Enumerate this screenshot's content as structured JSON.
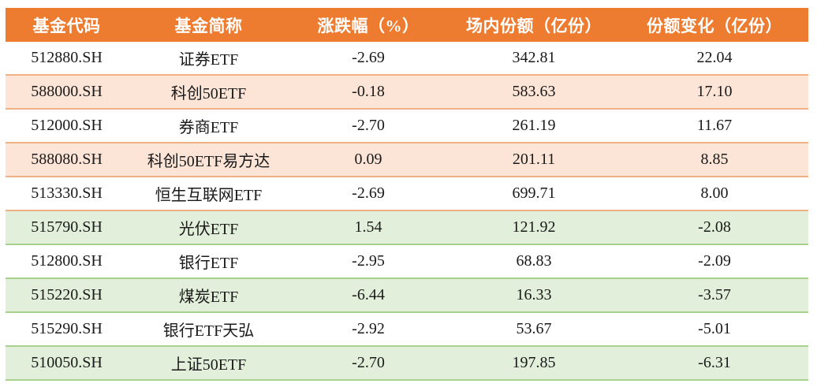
{
  "chart_data": {
    "type": "table",
    "columns": [
      "基金代码",
      "基金简称",
      "涨跌幅（%）",
      "场内份额（亿份）",
      "份额变化（亿份）"
    ],
    "rows": [
      [
        "512880.SH",
        "证券ETF",
        "-2.69",
        "342.81",
        "22.04"
      ],
      [
        "588000.SH",
        "科创50ETF",
        "-0.18",
        "583.63",
        "17.10"
      ],
      [
        "512000.SH",
        "券商ETF",
        "-2.70",
        "261.19",
        "11.67"
      ],
      [
        "588080.SH",
        "科创50ETF易方达",
        "0.09",
        "201.11",
        "8.85"
      ],
      [
        "513330.SH",
        "恒生互联网ETF",
        "-2.69",
        "699.71",
        "8.00"
      ],
      [
        "515790.SH",
        "光伏ETF",
        "1.54",
        "121.92",
        "-2.08"
      ],
      [
        "512800.SH",
        "银行ETF",
        "-2.95",
        "68.83",
        "-2.09"
      ],
      [
        "515220.SH",
        "煤炭ETF",
        "-6.44",
        "16.33",
        "-3.57"
      ],
      [
        "515290.SH",
        "银行ETF天弘",
        "-2.92",
        "53.67",
        "-5.01"
      ],
      [
        "510050.SH",
        "上证50ETF",
        "-2.70",
        "197.85",
        "-6.31"
      ]
    ]
  },
  "colors": {
    "header_bg": "#ED7C31",
    "header_text": "#FFFFFF",
    "row_shade_positive": "#FCE4D6",
    "row_shade_negative": "#E2EFDA",
    "divider_positive": "#EFB184",
    "divider_negative": "#A9D18E",
    "body_text": "#1A1A1A"
  }
}
